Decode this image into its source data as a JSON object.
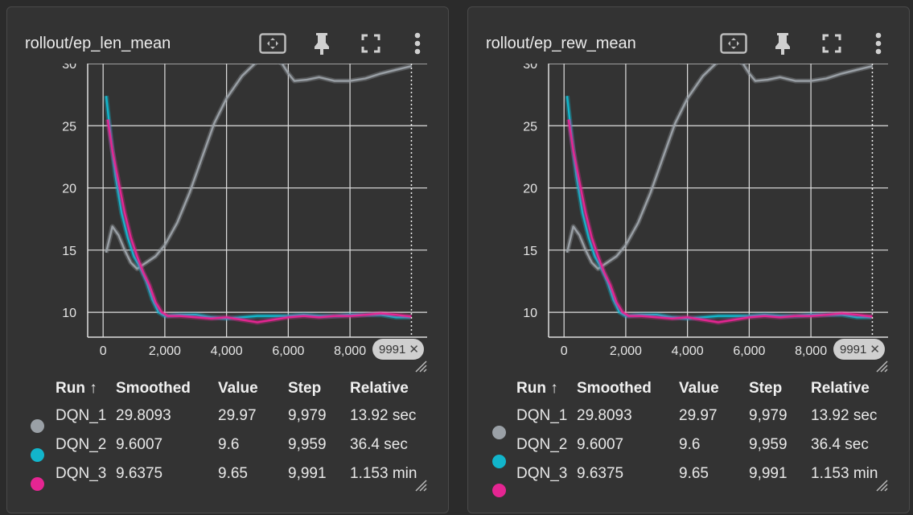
{
  "panels": [
    {
      "title": "rollout/ep_len_mean",
      "step_badge": "9991",
      "table": {
        "headers": [
          "Run ↑",
          "Smoothed",
          "Value",
          "Step",
          "Relative"
        ],
        "rows": [
          {
            "run": "DQN_1",
            "smoothed": "29.8093",
            "value": "29.97",
            "step": "9,979",
            "relative": "13.92 sec"
          },
          {
            "run": "DQN_2",
            "smoothed": "9.6007",
            "value": "9.6",
            "step": "9,959",
            "relative": "36.4 sec"
          },
          {
            "run": "DQN_3",
            "smoothed": "9.6375",
            "value": "9.65",
            "step": "9,991",
            "relative": "1.153 min"
          }
        ]
      }
    },
    {
      "title": "rollout/ep_rew_mean",
      "step_badge": "9991",
      "table": {
        "headers": [
          "Run ↑",
          "Smoothed",
          "Value",
          "Step",
          "Relative"
        ],
        "rows": [
          {
            "run": "DQN_1",
            "smoothed": "29.8093",
            "value": "29.97",
            "step": "9,979",
            "relative": "13.92 sec"
          },
          {
            "run": "DQN_2",
            "smoothed": "9.6007",
            "value": "9.6",
            "step": "9,959",
            "relative": "36.4 sec"
          },
          {
            "run": "DQN_3",
            "smoothed": "9.6375",
            "value": "9.65",
            "step": "9,991",
            "relative": "1.153 min"
          }
        ]
      }
    }
  ],
  "colors": {
    "DQN_1": "#9aa0a6",
    "DQN_2": "#12b5cb",
    "DQN_3": "#e52592",
    "grid": "#e0e0e0",
    "background": "#333333"
  },
  "icons": [
    "fit-domain-icon",
    "pin-icon",
    "fullscreen-icon",
    "more-vert-icon",
    "resize-handle-icon"
  ],
  "chart_data": [
    {
      "type": "line",
      "title": "rollout/ep_len_mean",
      "xlabel": "",
      "ylabel": "",
      "xlim": [
        -500,
        10500
      ],
      "ylim": [
        8.0,
        30.0
      ],
      "x_ticks": [
        "0",
        "2,000",
        "4,000",
        "6,000",
        "8,000"
      ],
      "y_ticks": [
        "10",
        "15",
        "20",
        "25",
        "30"
      ],
      "grid": true,
      "series": [
        {
          "name": "DQN_1",
          "x": [
            100,
            300,
            500,
            700,
            900,
            1100,
            1400,
            1700,
            2000,
            2400,
            2800,
            3200,
            3600,
            4000,
            4500,
            5000,
            5500,
            5800,
            6000,
            6200,
            6600,
            7000,
            7500,
            8000,
            8500,
            9000,
            9500,
            10000
          ],
          "y": [
            14.8,
            16.9,
            16.2,
            15.0,
            14.0,
            13.5,
            14.0,
            14.5,
            15.4,
            17.2,
            19.6,
            22.4,
            25.2,
            27.2,
            29.0,
            30.2,
            30.4,
            30.0,
            29.2,
            28.6,
            28.7,
            28.9,
            28.6,
            28.6,
            28.8,
            29.2,
            29.5,
            29.8
          ]
        },
        {
          "name": "DQN_2",
          "x": [
            100,
            250,
            400,
            600,
            800,
            1000,
            1200,
            1400,
            1600,
            1800,
            2000,
            2500,
            3000,
            3500,
            4000,
            4500,
            5000,
            5500,
            6000,
            6500,
            7000,
            7500,
            8000,
            8500,
            9000,
            9500,
            9959
          ],
          "y": [
            27.4,
            24.0,
            21.0,
            18.0,
            16.0,
            14.5,
            13.6,
            12.5,
            11.0,
            10.0,
            9.7,
            9.8,
            9.8,
            9.6,
            9.5,
            9.6,
            9.7,
            9.7,
            9.7,
            9.8,
            9.7,
            9.7,
            9.8,
            9.8,
            9.8,
            9.6,
            9.6
          ]
        },
        {
          "name": "DQN_3",
          "x": [
            150,
            300,
            500,
            700,
            900,
            1100,
            1300,
            1500,
            1700,
            1900,
            2100,
            2500,
            3000,
            3500,
            4000,
            4500,
            5000,
            5500,
            6000,
            6500,
            7000,
            7500,
            8000,
            8500,
            9000,
            9500,
            9991
          ],
          "y": [
            25.5,
            23.0,
            20.5,
            18.0,
            16.0,
            14.5,
            13.2,
            12.2,
            10.8,
            10.0,
            9.7,
            9.7,
            9.6,
            9.5,
            9.6,
            9.4,
            9.2,
            9.4,
            9.6,
            9.7,
            9.6,
            9.7,
            9.7,
            9.8,
            9.9,
            9.8,
            9.65
          ]
        }
      ]
    },
    {
      "type": "line",
      "title": "rollout/ep_rew_mean",
      "xlabel": "",
      "ylabel": "",
      "xlim": [
        -500,
        10500
      ],
      "ylim": [
        8.0,
        30.0
      ],
      "x_ticks": [
        "0",
        "2,000",
        "4,000",
        "6,000",
        "8,000"
      ],
      "y_ticks": [
        "10",
        "15",
        "20",
        "25",
        "30"
      ],
      "grid": true,
      "series": [
        {
          "name": "DQN_1",
          "x": [
            100,
            300,
            500,
            700,
            900,
            1100,
            1400,
            1700,
            2000,
            2400,
            2800,
            3200,
            3600,
            4000,
            4500,
            5000,
            5500,
            5800,
            6000,
            6200,
            6600,
            7000,
            7500,
            8000,
            8500,
            9000,
            9500,
            10000
          ],
          "y": [
            14.8,
            16.9,
            16.2,
            15.0,
            14.0,
            13.5,
            14.0,
            14.5,
            15.4,
            17.2,
            19.6,
            22.4,
            25.2,
            27.2,
            29.0,
            30.2,
            30.4,
            30.0,
            29.2,
            28.6,
            28.7,
            28.9,
            28.6,
            28.6,
            28.8,
            29.2,
            29.5,
            29.8
          ]
        },
        {
          "name": "DQN_2",
          "x": [
            100,
            250,
            400,
            600,
            800,
            1000,
            1200,
            1400,
            1600,
            1800,
            2000,
            2500,
            3000,
            3500,
            4000,
            4500,
            5000,
            5500,
            6000,
            6500,
            7000,
            7500,
            8000,
            8500,
            9000,
            9500,
            9959
          ],
          "y": [
            27.4,
            24.0,
            21.0,
            18.0,
            16.0,
            14.5,
            13.6,
            12.5,
            11.0,
            10.0,
            9.7,
            9.8,
            9.8,
            9.6,
            9.5,
            9.6,
            9.7,
            9.7,
            9.7,
            9.8,
            9.7,
            9.7,
            9.8,
            9.8,
            9.8,
            9.6,
            9.6
          ]
        },
        {
          "name": "DQN_3",
          "x": [
            150,
            300,
            500,
            700,
            900,
            1100,
            1300,
            1500,
            1700,
            1900,
            2100,
            2500,
            3000,
            3500,
            4000,
            4500,
            5000,
            5500,
            6000,
            6500,
            7000,
            7500,
            8000,
            8500,
            9000,
            9500,
            9991
          ],
          "y": [
            25.5,
            23.0,
            20.5,
            18.0,
            16.0,
            14.5,
            13.2,
            12.2,
            10.8,
            10.0,
            9.7,
            9.7,
            9.6,
            9.5,
            9.6,
            9.4,
            9.2,
            9.4,
            9.6,
            9.7,
            9.6,
            9.7,
            9.7,
            9.8,
            9.9,
            9.8,
            9.65
          ]
        }
      ]
    }
  ]
}
